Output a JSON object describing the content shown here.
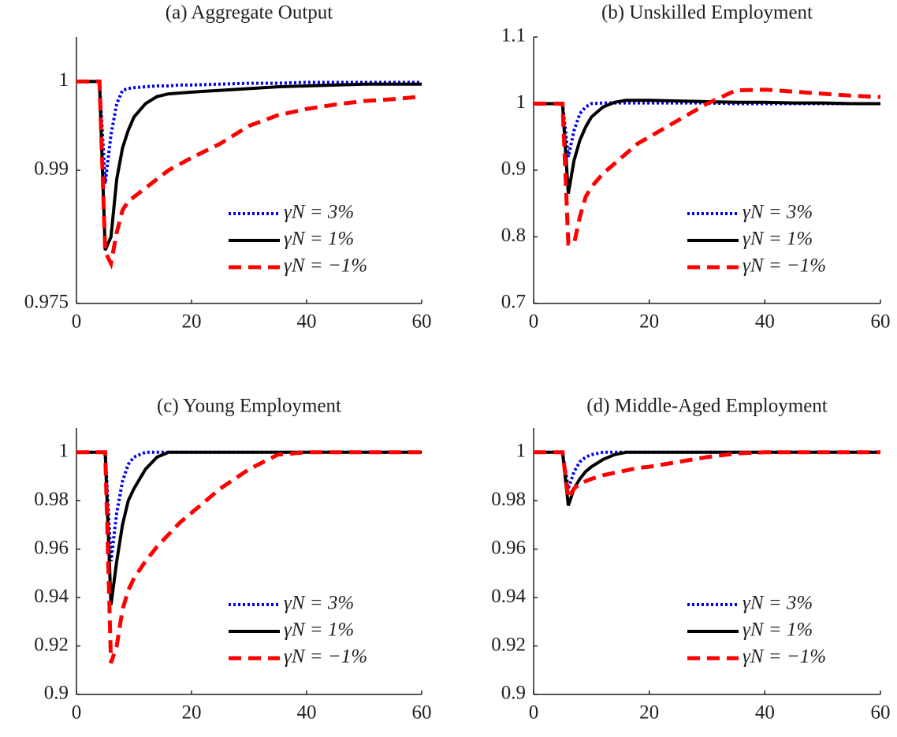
{
  "chart_data": [
    {
      "type": "line",
      "title": "(a) Aggregate Output",
      "x": [
        0,
        1,
        2,
        3,
        4,
        5,
        6,
        7,
        8,
        9,
        10,
        12,
        14,
        16,
        18,
        20,
        25,
        30,
        35,
        40,
        45,
        50,
        55,
        60
      ],
      "xlim": [
        0,
        60
      ],
      "xticks": [
        0,
        20,
        40,
        60
      ],
      "ylim": [
        0.975,
        1.005
      ],
      "yticks": [
        0.975,
        0.99,
        1
      ],
      "legend": "lower right",
      "series": [
        {
          "name": "γN = 3%",
          "color": "#0000ee",
          "style": "dotted",
          "values": [
            1,
            1,
            1,
            1,
            1,
            0.9885,
            0.994,
            0.9975,
            0.999,
            0.9992,
            0.9993,
            0.9994,
            0.9995,
            0.9995,
            0.9996,
            0.9996,
            0.9997,
            0.9998,
            0.9998,
            0.9999,
            0.9999,
            0.9999,
            0.9999,
            0.9999
          ]
        },
        {
          "name": "γN = 1%",
          "color": "#000000",
          "style": "solid",
          "values": [
            1,
            1,
            1,
            1,
            1,
            0.981,
            0.9825,
            0.989,
            0.9925,
            0.9945,
            0.996,
            0.9975,
            0.9983,
            0.9986,
            0.9987,
            0.9988,
            0.999,
            0.9992,
            0.9994,
            0.9995,
            0.9996,
            0.9997,
            0.9997,
            0.9997
          ]
        },
        {
          "name": "γN = −1%",
          "color": "#ff0000",
          "style": "dashed",
          "values": [
            1,
            1,
            1,
            1,
            1,
            0.9808,
            0.9795,
            0.983,
            0.9855,
            0.9865,
            0.987,
            0.988,
            0.989,
            0.99,
            0.9907,
            0.9914,
            0.993,
            0.995,
            0.9962,
            0.9969,
            0.9974,
            0.9978,
            0.998,
            0.9983
          ]
        }
      ]
    },
    {
      "type": "line",
      "title": "(b) Unskilled Employment",
      "x": [
        0,
        1,
        2,
        3,
        4,
        5,
        6,
        7,
        8,
        9,
        10,
        12,
        14,
        16,
        18,
        20,
        25,
        30,
        35,
        40,
        45,
        50,
        55,
        60
      ],
      "xlim": [
        0,
        60
      ],
      "xticks": [
        0,
        20,
        40,
        60
      ],
      "ylim": [
        0.7,
        1.1
      ],
      "yticks": [
        0.7,
        0.8,
        0.9,
        1,
        1.1
      ],
      "legend": "lower right",
      "series": [
        {
          "name": "γN = 3%",
          "color": "#0000ee",
          "style": "dotted",
          "values": [
            1,
            1,
            1,
            1,
            1,
            1,
            0.92,
            0.96,
            0.985,
            0.995,
            1,
            1.001,
            1.001,
            1.001,
            1.001,
            1.001,
            1.001,
            1.001,
            1,
            1,
            1,
            1,
            1,
            1
          ]
        },
        {
          "name": "γN = 1%",
          "color": "#000000",
          "style": "solid",
          "values": [
            1,
            1,
            1,
            1,
            1,
            1,
            0.865,
            0.915,
            0.945,
            0.965,
            0.98,
            0.995,
            1.002,
            1.005,
            1.005,
            1.005,
            1.004,
            1.003,
            1.002,
            1.002,
            1.001,
            1.001,
            1,
            1
          ]
        },
        {
          "name": "γN = −1%",
          "color": "#ff0000",
          "style": "dashed",
          "values": [
            1,
            1,
            1,
            1,
            1,
            1,
            0.79,
            0.79,
            0.83,
            0.86,
            0.875,
            0.895,
            0.91,
            0.925,
            0.94,
            0.95,
            0.975,
            1,
            1.02,
            1.021,
            1.018,
            1.015,
            1.012,
            1.01
          ]
        }
      ]
    },
    {
      "type": "line",
      "title": "(c) Young Employment",
      "x": [
        0,
        1,
        2,
        3,
        4,
        5,
        6,
        7,
        8,
        9,
        10,
        12,
        14,
        16,
        18,
        20,
        25,
        30,
        35,
        40,
        45,
        50,
        55,
        60
      ],
      "xlim": [
        0,
        60
      ],
      "xticks": [
        0,
        20,
        40,
        60
      ],
      "ylim": [
        0.9,
        1.01
      ],
      "yticks": [
        0.9,
        0.92,
        0.94,
        0.96,
        0.98,
        1
      ],
      "legend": "lower right",
      "series": [
        {
          "name": "γN = 3%",
          "color": "#0000ee",
          "style": "dotted",
          "values": [
            1,
            1,
            1,
            1,
            1,
            1,
            0.955,
            0.975,
            0.988,
            0.995,
            0.998,
            1,
            1,
            1,
            1,
            1,
            1,
            1,
            1,
            1,
            1,
            1,
            1,
            1
          ]
        },
        {
          "name": "γN = 1%",
          "color": "#000000",
          "style": "solid",
          "values": [
            1,
            1,
            1,
            1,
            1,
            1,
            0.937,
            0.955,
            0.97,
            0.98,
            0.985,
            0.993,
            0.998,
            1,
            1,
            1,
            1,
            1,
            1,
            1,
            1,
            1,
            1,
            1
          ]
        },
        {
          "name": "γN = −1%",
          "color": "#ff0000",
          "style": "dashed",
          "values": [
            1,
            1,
            1,
            1,
            1,
            1,
            0.913,
            0.92,
            0.935,
            0.943,
            0.948,
            0.955,
            0.961,
            0.966,
            0.971,
            0.975,
            0.985,
            0.993,
            0.999,
            1,
            1,
            1,
            1,
            1
          ]
        }
      ]
    },
    {
      "type": "line",
      "title": "(d) Middle-Aged Employment",
      "x": [
        0,
        1,
        2,
        3,
        4,
        5,
        6,
        7,
        8,
        9,
        10,
        12,
        14,
        16,
        18,
        20,
        25,
        30,
        35,
        40,
        45,
        50,
        55,
        60
      ],
      "xlim": [
        0,
        60
      ],
      "xticks": [
        0,
        20,
        40,
        60
      ],
      "ylim": [
        0.9,
        1.01
      ],
      "yticks": [
        0.9,
        0.92,
        0.94,
        0.96,
        0.98,
        1
      ],
      "legend": "lower right",
      "series": [
        {
          "name": "γN = 3%",
          "color": "#0000ee",
          "style": "dotted",
          "values": [
            1,
            1,
            1,
            1,
            1,
            1,
            0.985,
            0.992,
            0.996,
            0.998,
            0.999,
            1,
            1,
            1,
            1,
            1,
            1,
            1,
            1,
            1,
            1,
            1,
            1,
            1
          ]
        },
        {
          "name": "γN = 1%",
          "color": "#000000",
          "style": "solid",
          "values": [
            1,
            1,
            1,
            1,
            1,
            1,
            0.978,
            0.985,
            0.989,
            0.992,
            0.994,
            0.997,
            0.999,
            1,
            1,
            1,
            1,
            1,
            1,
            1,
            1,
            1,
            1,
            1
          ]
        },
        {
          "name": "γN = −1%",
          "color": "#ff0000",
          "style": "dashed",
          "values": [
            1,
            1,
            1,
            1,
            1,
            1,
            0.981,
            0.985,
            0.987,
            0.988,
            0.989,
            0.9905,
            0.9915,
            0.9925,
            0.9935,
            0.994,
            0.996,
            0.998,
            0.9995,
            1,
            1,
            1,
            1,
            1
          ]
        }
      ]
    }
  ]
}
